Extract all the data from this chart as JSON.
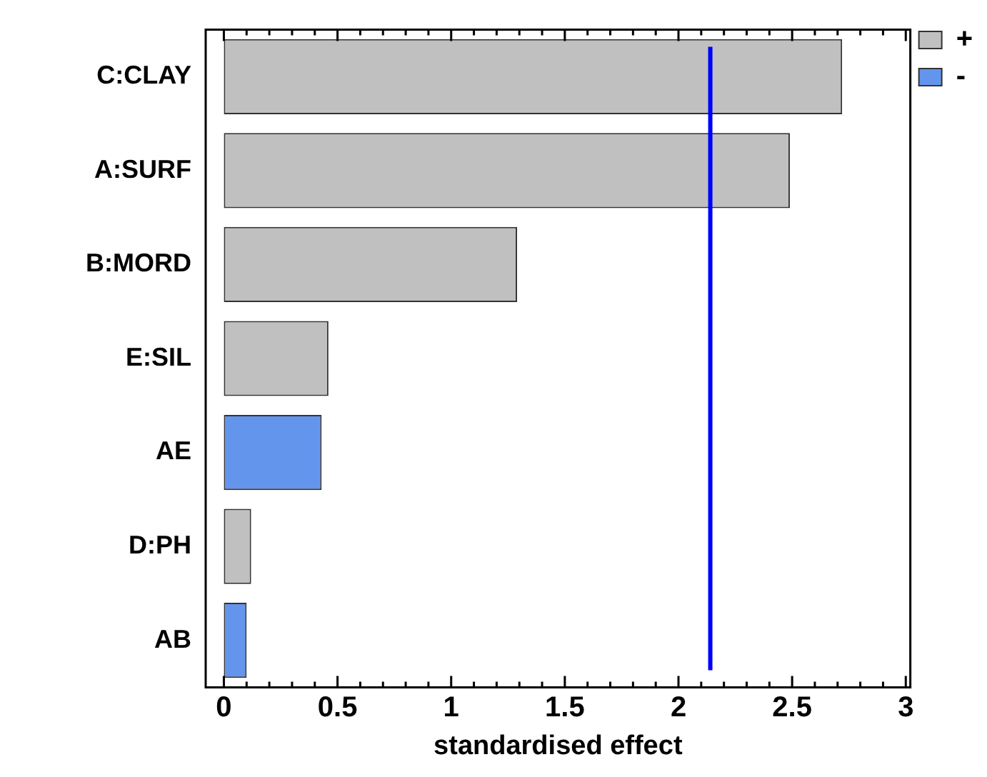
{
  "chart_data": {
    "type": "bar",
    "orientation": "horizontal",
    "stacked": true,
    "xlabel": "standardised effect",
    "categories": [
      "C:CLAY",
      "A:SURF",
      "B:MORD",
      "E:SIL",
      "AE",
      "D:PH",
      "AB"
    ],
    "series": [
      {
        "name": "+",
        "color": "#c0c0c0",
        "values": [
          2.72,
          2.49,
          1.29,
          0.46,
          null,
          0.12,
          null
        ]
      },
      {
        "name": "-",
        "color": "#6495ed",
        "values": [
          null,
          null,
          null,
          null,
          0.43,
          null,
          0.1
        ]
      }
    ],
    "xlim": [
      -0.08,
      3.02
    ],
    "xticks": [
      0,
      {
        "value": 0.1,
        "label": null
      },
      {
        "value": 0.2,
        "label": null
      },
      {
        "value": 0.3,
        "label": null
      },
      {
        "value": 0.4,
        "label": null
      },
      0.5,
      {
        "value": 0.6,
        "label": null
      },
      {
        "value": 0.7,
        "label": null
      },
      {
        "value": 0.8,
        "label": null
      },
      {
        "value": 0.9,
        "label": null
      },
      1,
      {
        "value": 1.1,
        "label": null
      },
      {
        "value": 1.2,
        "label": null
      },
      {
        "value": 1.3,
        "label": null
      },
      {
        "value": 1.4,
        "label": null
      },
      1.5,
      {
        "value": 1.6,
        "label": null
      },
      {
        "value": 1.7,
        "label": null
      },
      {
        "value": 1.8,
        "label": null
      },
      {
        "value": 1.9,
        "label": null
      },
      2,
      {
        "value": 2.1,
        "label": null
      },
      {
        "value": 2.2,
        "label": null
      },
      {
        "value": 2.3,
        "label": null
      },
      {
        "value": 2.4,
        "label": null
      },
      2.5,
      {
        "value": 2.6,
        "label": null
      },
      {
        "value": 2.7,
        "label": null
      },
      {
        "value": 2.8,
        "label": null
      },
      {
        "value": 2.9,
        "label": null
      },
      3
    ],
    "ref_lines": [
      {
        "axis": "x",
        "value": 2.14,
        "color": "#0000ff"
      }
    ],
    "grid": false,
    "legend": "top right"
  }
}
